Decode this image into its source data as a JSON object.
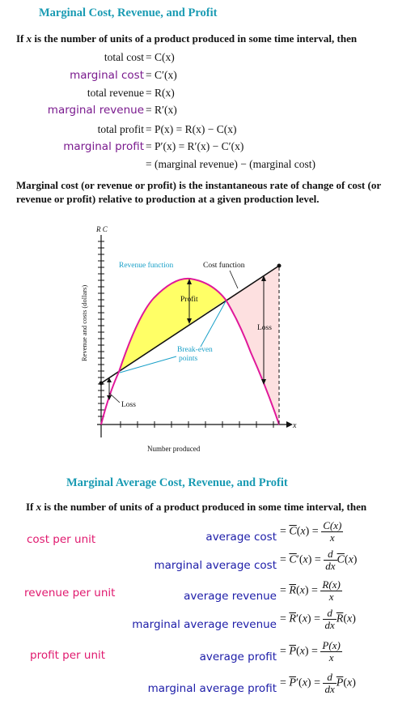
{
  "section1": {
    "title": "Marginal Cost, Revenue, and Profit",
    "intro_prefix": "If ",
    "intro_var": "x",
    "intro_rest": " is the number of units of a product produced in some time interval, then",
    "rows": [
      {
        "label": "total cost",
        "expr": "= C(x)"
      },
      {
        "label": "marginal cost",
        "expr": "= C′(x)"
      },
      {
        "label": "total revenue",
        "expr": "= R(x)"
      },
      {
        "label": "marginal revenue",
        "expr": "= R′(x)"
      },
      {
        "label": "total profit",
        "expr": "= P(x) = R(x) − C(x)"
      },
      {
        "label": "marginal profit",
        "expr": "= P′(x) = R′(x) − C′(x)"
      }
    ],
    "continuation": "= (marginal revenue) − (marginal cost)",
    "paragraph": "Marginal cost (or revenue or profit) is the instantaneous rate of change of cost (or revenue or profit) relative to production at a given production level."
  },
  "figure": {
    "axis_top_label": "R C",
    "x_axis_symbol": "x",
    "y_axis_label": "Revenue and costs (dollars)",
    "x_axis_label": "Number produced",
    "revenue_label": "Revenue function",
    "cost_label": "Cost function",
    "profit_label": "Profit",
    "loss_label_right": "Loss",
    "loss_label_left": "Loss",
    "breakeven_label_1": "Break-even",
    "breakeven_label_2": "points",
    "colors": {
      "revenue": "#e0189a",
      "profit_fill": "#ffff66",
      "loss_fill": "#fde0e0",
      "annotation": "#1aa0c8",
      "cost": "#111111"
    }
  },
  "section2": {
    "title": "Marginal Average Cost, Revenue, and Profit",
    "intro_prefix": "If ",
    "intro_var": "x",
    "intro_rest": " is the number of units of a product produced in some time interval, then",
    "side_labels": [
      "cost per unit",
      "revenue per unit",
      "profit per unit"
    ],
    "rows": [
      {
        "label": "average cost",
        "lhs": "C",
        "type": "avg",
        "num": "C(x)",
        "den": "x"
      },
      {
        "label": "marginal average cost",
        "lhs": "C",
        "type": "marg",
        "num": "d",
        "den": "dx",
        "fn": "C"
      },
      {
        "label": "average revenue",
        "lhs": "R",
        "type": "avg",
        "num": "R(x)",
        "den": "x"
      },
      {
        "label": "marginal average revenue",
        "lhs": "R",
        "type": "marg",
        "num": "d",
        "den": "dx",
        "fn": "R"
      },
      {
        "label": "average profit",
        "lhs": "P",
        "type": "avg",
        "num": "P(x)",
        "den": "x"
      },
      {
        "label": "marginal average profit",
        "lhs": "P",
        "type": "marg",
        "num": "d",
        "den": "dx",
        "fn": "P"
      }
    ]
  }
}
